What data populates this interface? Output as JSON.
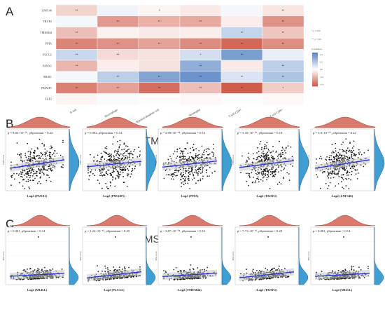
{
  "panel_letters": {
    "a": "A",
    "b": "B",
    "c": "C"
  },
  "section_titles": {
    "tmb": "TMB",
    "msi": "MSI"
  },
  "colors": {
    "neg_strong": "#5a86c6",
    "pos_strong": "#cf5d4c",
    "density_top_fill": "#d97a6c",
    "density_right_fill": "#3f9fd3",
    "fit_line": "#2432d6",
    "ci_band": "#c9c9c9",
    "points": "#111111"
  },
  "chart_data": [
    {
      "type": "heatmap",
      "rows": [
        "ZNF146",
        "TRAF2",
        "TMEM44",
        "PPIA",
        "PLCG1",
        "PANX1",
        "MLKL",
        "PMAIP1",
        "FAF2"
      ],
      "cols": [
        "B cell",
        "Macrophage",
        "Myeloid dendritic cell",
        "Neutrophil",
        "T cell CD4+",
        "T cell CD8+"
      ],
      "values": [
        [
          0.12,
          -0.04,
          0.03,
          0.06,
          -0.03,
          0.07
        ],
        [
          -0.03,
          0.28,
          0.22,
          0.24,
          0.05,
          0.3
        ],
        [
          0.18,
          0.04,
          0.06,
          0.05,
          -0.16,
          0.16
        ],
        [
          0.34,
          0.3,
          0.26,
          0.32,
          0.42,
          0.31
        ],
        [
          -0.15,
          0.1,
          0.08,
          -0.12,
          -0.36,
          -0.06
        ],
        [
          0.2,
          0.05,
          0.08,
          -0.3,
          0.06,
          -0.18
        ],
        [
          -0.03,
          -0.18,
          -0.34,
          -0.4,
          -0.1,
          -0.22
        ],
        [
          0.35,
          0.26,
          0.4,
          0.18,
          0.45,
          0.14
        ],
        [
          0.03,
          -0.02,
          0.01,
          0.02,
          -0.01,
          0.02
        ]
      ],
      "stars": [
        [
          "**",
          "",
          "*",
          "",
          "",
          "**"
        ],
        [
          "",
          "**",
          "**",
          "**",
          "",
          "**"
        ],
        [
          "**",
          "",
          "",
          "",
          "**",
          "**"
        ],
        [
          "**",
          "**",
          "**",
          "**",
          "**",
          "**"
        ],
        [
          "**",
          "**",
          "",
          "*",
          "**",
          ""
        ],
        [
          "**",
          "",
          "",
          "**",
          "",
          "**"
        ],
        [
          "",
          "**",
          "**",
          "**",
          "**",
          "**"
        ],
        [
          "**",
          "**",
          "**",
          "**",
          "**",
          "*"
        ],
        [
          "",
          "",
          "",
          "",
          "",
          ""
        ]
      ],
      "legend": {
        "sig": [
          "* p < 0.05",
          "** p < 0.01"
        ],
        "title": "Correlation",
        "ticks": [
          0.4,
          0.2,
          0.0,
          -0.2,
          -0.4
        ],
        "tick_labels": [
          "0.4",
          "0.2",
          "0.0",
          "-0.2",
          "-0.4"
        ]
      }
    },
    {
      "type": "scatter",
      "group": "TMB",
      "panels": [
        {
          "xlabel": "Log2 (PANX1)",
          "ylabel": "TMB score",
          "stat": "p = 8.03×10⁻⁰⁷, ρSpearman = 0.22",
          "slope": 0.22,
          "seed": 11
        },
        {
          "xlabel": "Log2 (PMAIP1)",
          "ylabel": "TMB score",
          "stat": "p = 0.002, ρSpearman = 0.14",
          "slope": 0.14,
          "seed": 23
        },
        {
          "xlabel": "Log2 (PPIA)",
          "ylabel": "TMB score",
          "stat": "p = 2.09×10⁻⁰⁴, ρSpearman = 0.16",
          "slope": 0.16,
          "seed": 37
        },
        {
          "xlabel": "Log2 (TRAF2)",
          "ylabel": "TMB score",
          "stat": "p = 3.35×10⁻⁰⁵, ρSpearman = 0.18",
          "slope": 0.18,
          "seed": 41
        },
        {
          "xlabel": "Log2 (ZNF146)",
          "ylabel": "TMB score",
          "stat": "p = 5.9×10⁻⁰⁷, ρSpearman = 0.22",
          "slope": 0.22,
          "seed": 53
        }
      ]
    },
    {
      "type": "scatter",
      "group": "MSI",
      "panels": [
        {
          "xlabel": "Log2 (MLKL)",
          "ylabel": "MSI score",
          "stat": "p = 0.001, ρSpearman = 0.14",
          "slope": 0.14,
          "seed": 61
        },
        {
          "xlabel": "Log2 (PLCG1)",
          "ylabel": "MSI score",
          "stat": "p = 1.22×10⁻¹⁰, ρSpearman = 0.29",
          "slope": 0.29,
          "seed": 67
        },
        {
          "xlabel": "Log2 (TMEM44)",
          "ylabel": "MSI score",
          "stat": "p = 3.87×10⁻⁰⁴, ρSpearman = 0.16",
          "slope": 0.16,
          "seed": 71
        },
        {
          "xlabel": "Log2 (TRAF2)",
          "ylabel": "MSI score",
          "stat": "p = 7.71×10⁻¹⁰, ρSpearman = 0.28",
          "slope": 0.28,
          "seed": 79
        },
        {
          "xlabel": "Log2 (MLKL)",
          "ylabel": "MSI score",
          "stat": "p = 0.001, ρSpearman = 0.14",
          "slope": 0.14,
          "seed": 83
        }
      ]
    }
  ]
}
